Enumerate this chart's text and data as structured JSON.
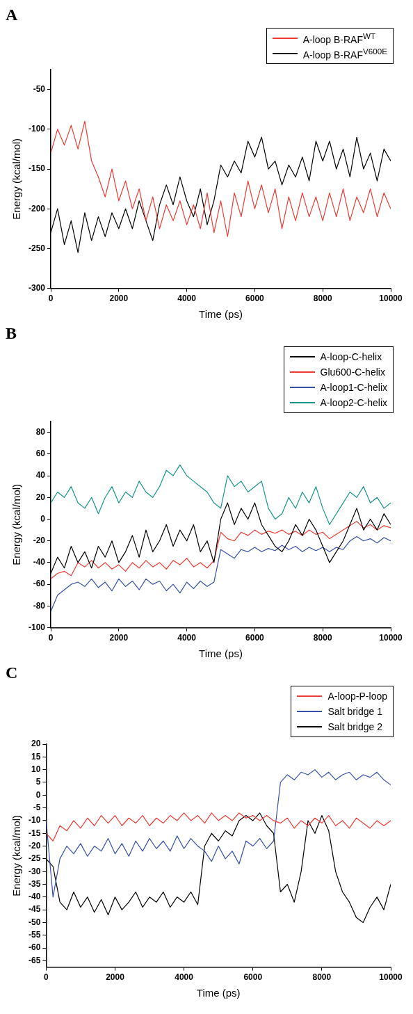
{
  "chart_data": [
    {
      "type": "line",
      "title": "A",
      "xlabel": "Time (ps)",
      "ylabel": "Energy (kcal/mol)",
      "legend": "top right",
      "xlim": [
        0,
        10000
      ],
      "xticks": [
        0,
        2000,
        4000,
        6000,
        8000,
        10000
      ],
      "ylim": [
        -300,
        -25
      ],
      "yticks": [
        -300,
        -250,
        -200,
        -150,
        -100,
        -50
      ],
      "x": [
        0,
        200,
        400,
        600,
        800,
        1000,
        1200,
        1400,
        1600,
        1800,
        2000,
        2200,
        2400,
        2600,
        2800,
        3000,
        3200,
        3400,
        3600,
        3800,
        4000,
        4200,
        4400,
        4600,
        4800,
        5000,
        5200,
        5400,
        5600,
        5800,
        6000,
        6200,
        6400,
        6600,
        6800,
        7000,
        7200,
        7400,
        7600,
        7800,
        8000,
        8200,
        8400,
        8600,
        8800,
        9000,
        9200,
        9400,
        9600,
        9800,
        10000
      ],
      "series": [
        {
          "name": "A-loop B-RAF$^{WT}$",
          "color": "#ee3a33",
          "values": [
            -130,
            -100,
            -120,
            -95,
            -125,
            -90,
            -140,
            -160,
            -185,
            -150,
            -190,
            -165,
            -200,
            -175,
            -215,
            -185,
            -225,
            -195,
            -215,
            -190,
            -220,
            -195,
            -225,
            -180,
            -230,
            -190,
            -235,
            -180,
            -210,
            -165,
            -200,
            -170,
            -205,
            -175,
            -225,
            -185,
            -215,
            -180,
            -210,
            -185,
            -215,
            -180,
            -210,
            -175,
            -215,
            -185,
            -205,
            -175,
            -210,
            -180,
            -200
          ]
        },
        {
          "name": "A-loop B-RAF$^{V600E}$",
          "color": "#000000",
          "values": [
            -230,
            -200,
            -245,
            -215,
            -255,
            -205,
            -240,
            -210,
            -235,
            -205,
            -225,
            -200,
            -225,
            -190,
            -215,
            -240,
            -195,
            -170,
            -195,
            -160,
            -190,
            -210,
            -175,
            -220,
            -190,
            -145,
            -160,
            -140,
            -155,
            -115,
            -135,
            -110,
            -150,
            -140,
            -170,
            -145,
            -160,
            -135,
            -165,
            -115,
            -140,
            -115,
            -150,
            -125,
            -160,
            -110,
            -150,
            -130,
            -165,
            -125,
            -140
          ]
        }
      ]
    },
    {
      "type": "line",
      "title": "B",
      "xlabel": "Time (ps)",
      "ylabel": "Energy (kcal/mol)",
      "legend": "top right",
      "xlim": [
        0,
        10000
      ],
      "xticks": [
        0,
        2000,
        4000,
        6000,
        8000,
        10000
      ],
      "ylim": [
        -100,
        90
      ],
      "yticks": [
        -100,
        -80,
        -60,
        -40,
        -20,
        0,
        20,
        40,
        60,
        80
      ],
      "x": [
        0,
        200,
        400,
        600,
        800,
        1000,
        1200,
        1400,
        1600,
        1800,
        2000,
        2200,
        2400,
        2600,
        2800,
        3000,
        3200,
        3400,
        3600,
        3800,
        4000,
        4200,
        4400,
        4600,
        4800,
        5000,
        5200,
        5400,
        5600,
        5800,
        6000,
        6200,
        6400,
        6600,
        6800,
        7000,
        7200,
        7400,
        7600,
        7800,
        8000,
        8200,
        8400,
        8600,
        8800,
        9000,
        9200,
        9400,
        9600,
        9800,
        10000
      ],
      "series": [
        {
          "name": "A-loop-C-helix",
          "color": "#000000",
          "values": [
            -50,
            -35,
            -45,
            -25,
            -40,
            -30,
            -45,
            -25,
            -35,
            -20,
            -40,
            -30,
            -15,
            -35,
            -10,
            -30,
            -20,
            -5,
            -25,
            -10,
            -20,
            -5,
            -30,
            -20,
            -40,
            0,
            15,
            -5,
            10,
            0,
            15,
            -5,
            -15,
            -25,
            -30,
            -20,
            -5,
            -15,
            0,
            -10,
            -25,
            -40,
            -30,
            -20,
            -5,
            10,
            -10,
            0,
            -10,
            5,
            -5
          ]
        },
        {
          "name": "Glu600-C-helix",
          "color": "#ee3a33",
          "values": [
            -55,
            -50,
            -48,
            -52,
            -40,
            -44,
            -38,
            -45,
            -40,
            -46,
            -42,
            -48,
            -40,
            -45,
            -38,
            -44,
            -40,
            -46,
            -38,
            -42,
            -36,
            -44,
            -40,
            -45,
            -38,
            -12,
            -18,
            -20,
            -12,
            -15,
            -10,
            -14,
            -11,
            -13,
            -10,
            -14,
            -11,
            -15,
            -10,
            -14,
            -12,
            -18,
            -14,
            -10,
            -6,
            -2,
            -8,
            -5,
            -10,
            -6,
            -8
          ]
        },
        {
          "name": "A-loop1-C-helix",
          "color": "#3650a8",
          "values": [
            -85,
            -70,
            -65,
            -60,
            -58,
            -62,
            -55,
            -63,
            -58,
            -66,
            -55,
            -62,
            -57,
            -65,
            -55,
            -60,
            -57,
            -66,
            -60,
            -68,
            -58,
            -64,
            -57,
            -62,
            -58,
            -28,
            -32,
            -36,
            -28,
            -30,
            -26,
            -30,
            -27,
            -29,
            -24,
            -28,
            -25,
            -30,
            -26,
            -29,
            -26,
            -30,
            -26,
            -28,
            -20,
            -16,
            -20,
            -18,
            -22,
            -17,
            -20
          ]
        },
        {
          "name": "A-loop2-C-helix",
          "color": "#16958c",
          "values": [
            15,
            25,
            20,
            30,
            15,
            10,
            20,
            5,
            20,
            30,
            15,
            25,
            20,
            35,
            25,
            20,
            30,
            45,
            40,
            50,
            40,
            35,
            30,
            25,
            15,
            10,
            40,
            30,
            35,
            25,
            30,
            35,
            10,
            0,
            5,
            20,
            10,
            25,
            15,
            30,
            10,
            -5,
            5,
            15,
            25,
            20,
            30,
            15,
            20,
            10,
            15
          ]
        }
      ]
    },
    {
      "type": "line",
      "title": "C",
      "xlabel": "Time (ps)",
      "ylabel": "Energy (kcal/mol)",
      "legend": "top right",
      "xlim": [
        0,
        10000
      ],
      "xticks": [
        0,
        2000,
        4000,
        6000,
        8000,
        10000
      ],
      "ylim": [
        -67.5,
        20
      ],
      "yticks": [
        -65,
        -60,
        -55,
        -50,
        -45,
        -40,
        -35,
        -30,
        -25,
        -20,
        -15,
        -10,
        -5,
        0,
        5,
        10,
        15,
        20
      ],
      "x": [
        0,
        200,
        400,
        600,
        800,
        1000,
        1200,
        1400,
        1600,
        1800,
        2000,
        2200,
        2400,
        2600,
        2800,
        3000,
        3200,
        3400,
        3600,
        3800,
        4000,
        4200,
        4400,
        4600,
        4800,
        5000,
        5200,
        5400,
        5600,
        5800,
        6000,
        6200,
        6400,
        6600,
        6800,
        7000,
        7200,
        7400,
        7600,
        7800,
        8000,
        8200,
        8400,
        8600,
        8800,
        9000,
        9200,
        9400,
        9600,
        9800,
        10000
      ],
      "series": [
        {
          "name": "A-loop-P-loop",
          "color": "#ee3a33",
          "values": [
            -15,
            -18,
            -12,
            -14,
            -10,
            -13,
            -9,
            -12,
            -8,
            -11,
            -8,
            -12,
            -9,
            -11,
            -8,
            -12,
            -9,
            -11,
            -8,
            -10,
            -7,
            -10,
            -8,
            -11,
            -7,
            -10,
            -8,
            -10,
            -7,
            -9,
            -8,
            -10,
            -8,
            -10,
            -11,
            -9,
            -13,
            -10,
            -12,
            -9,
            -11,
            -8,
            -12,
            -10,
            -13,
            -9,
            -11,
            -13,
            -10,
            -12,
            -10
          ]
        },
        {
          "name": "Salt bridge 1",
          "color": "#3650a8",
          "values": [
            -10,
            -40,
            -25,
            -20,
            -23,
            -19,
            -24,
            -20,
            -22,
            -17,
            -23,
            -19,
            -24,
            -18,
            -22,
            -17,
            -21,
            -18,
            -22,
            -16,
            -21,
            -17,
            -20,
            -22,
            -26,
            -20,
            -25,
            -22,
            -27,
            -18,
            -20,
            -17,
            -21,
            -18,
            5,
            8,
            6,
            9,
            8,
            10,
            7,
            9,
            6,
            8,
            9,
            6,
            8,
            7,
            9,
            6,
            4
          ]
        },
        {
          "name": "Salt bridge 2",
          "color": "#000000",
          "values": [
            -25,
            -28,
            -42,
            -45,
            -38,
            -44,
            -40,
            -46,
            -41,
            -47,
            -40,
            -45,
            -42,
            -38,
            -44,
            -40,
            -42,
            -38,
            -44,
            -40,
            -42,
            -38,
            -43,
            -20,
            -15,
            -18,
            -14,
            -16,
            -10,
            -8,
            -10,
            -7,
            -12,
            -15,
            -38,
            -35,
            -42,
            -30,
            -10,
            -15,
            -8,
            -14,
            -30,
            -38,
            -42,
            -48,
            -50,
            -44,
            -40,
            -45,
            -35
          ]
        }
      ]
    }
  ]
}
